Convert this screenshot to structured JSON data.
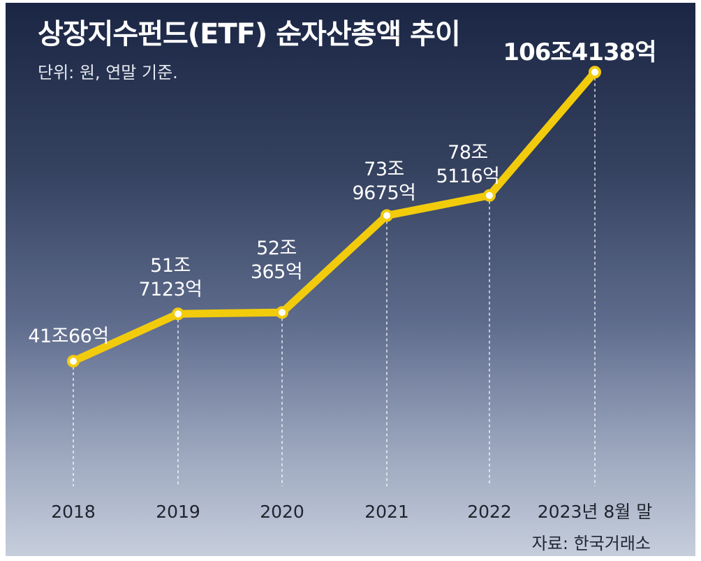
{
  "title": "상장지수펀드(ETF) 순자산총액 추이",
  "unit_note": "단위: 원, 연말 기준.",
  "source": "자료: 한국거래소",
  "colors": {
    "line": "#f2cc0c",
    "marker_fill": "#ffffff",
    "background_top": "#1b2644",
    "background_bottom": "#c6cedc"
  },
  "chart_data": {
    "type": "line",
    "title": "상장지수펀드(ETF) 순자산총액 추이",
    "xlabel": "",
    "ylabel": "",
    "unit": "원",
    "categories": [
      "2018",
      "2019",
      "2020",
      "2021",
      "2022",
      "2023년 8월 말"
    ],
    "series": [
      {
        "name": "ETF 순자산총액",
        "values_eok": [
          410066,
          517123,
          520365,
          739675,
          785116,
          1064138
        ]
      }
    ],
    "data_labels": [
      [
        "41조66억"
      ],
      [
        "51조",
        "7123억"
      ],
      [
        "52조",
        "365억"
      ],
      [
        "73조",
        "9675억"
      ],
      [
        "78조",
        "5116억"
      ],
      [
        "106조4138억"
      ]
    ],
    "ylim_eok": [
      0,
      1200000
    ],
    "grid": false,
    "legend": "none"
  }
}
